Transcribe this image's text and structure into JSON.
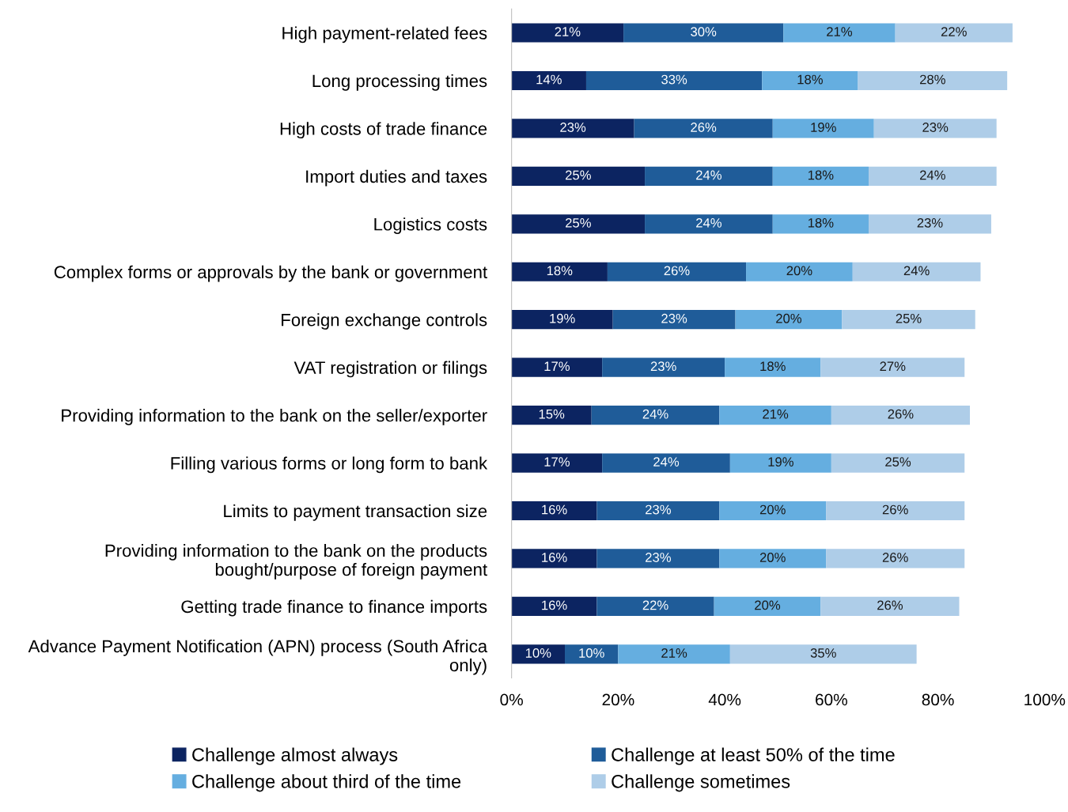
{
  "chart_data": {
    "type": "bar",
    "orientation": "horizontal",
    "stacked": true,
    "categories": [
      "High payment-related fees",
      "Long processing times",
      "High costs of trade finance",
      "Import duties and taxes",
      "Logistics costs",
      "Complex forms or approvals by the bank or government",
      "Foreign exchange controls",
      "VAT registration or filings",
      "Providing information to the bank on the seller/exporter",
      "Filling various forms or long form to bank",
      "Limits to payment transaction size",
      "Providing information to the bank on the products\nbought/purpose of foreign payment",
      "Getting trade finance to finance imports",
      "Advance Payment Notification (APN) process (South Africa\nonly)"
    ],
    "series": [
      {
        "name": "Challenge almost always",
        "color": "#0c2461",
        "values": [
          21,
          14,
          23,
          25,
          25,
          18,
          19,
          17,
          15,
          17,
          16,
          16,
          16,
          10
        ],
        "value_labels": [
          "21%",
          "14%",
          "23%",
          "25%",
          "25%",
          "18%",
          "19%",
          "17%",
          "15%",
          "17%",
          "16%",
          "16%",
          "16%",
          "10%"
        ]
      },
      {
        "name": "Challenge at least 50% of the time",
        "color": "#1f5c99",
        "values": [
          30,
          33,
          26,
          24,
          24,
          26,
          23,
          23,
          24,
          24,
          23,
          23,
          22,
          10
        ],
        "value_labels": [
          "30%",
          "33%",
          "26%",
          "24%",
          "24%",
          "26%",
          "23%",
          "23%",
          "24%",
          "24%",
          "23%",
          "23%",
          "22%",
          "10%"
        ]
      },
      {
        "name": "Challenge about third of the time",
        "color": "#65aee0",
        "values": [
          21,
          18,
          19,
          18,
          18,
          20,
          20,
          18,
          21,
          19,
          20,
          20,
          20,
          21
        ],
        "value_labels": [
          "21%",
          "18%",
          "19%",
          "18%",
          "18%",
          "20%",
          "20%",
          "18%",
          "21%",
          "19%",
          "20%",
          "20%",
          "20%",
          "21%"
        ]
      },
      {
        "name": "Challenge sometimes",
        "color": "#aecde8",
        "values": [
          22,
          28,
          23,
          24,
          23,
          24,
          25,
          27,
          26,
          25,
          26,
          26,
          26,
          35
        ],
        "value_labels": [
          "22%",
          "28%",
          "23%",
          "24%",
          "23%",
          "24%",
          "25%",
          "27%",
          "26%",
          "25%",
          "26%",
          "26%",
          "26%",
          "35%"
        ]
      }
    ],
    "xlim": [
      0,
      100
    ],
    "xticks": [
      {
        "value": 0,
        "label": "0%"
      },
      {
        "value": 20,
        "label": "20%"
      },
      {
        "value": 40,
        "label": "40%"
      },
      {
        "value": 60,
        "label": "60%"
      },
      {
        "value": 80,
        "label": "80%"
      },
      {
        "value": 100,
        "label": "100%"
      }
    ],
    "grid": false,
    "legend": "bottom"
  }
}
